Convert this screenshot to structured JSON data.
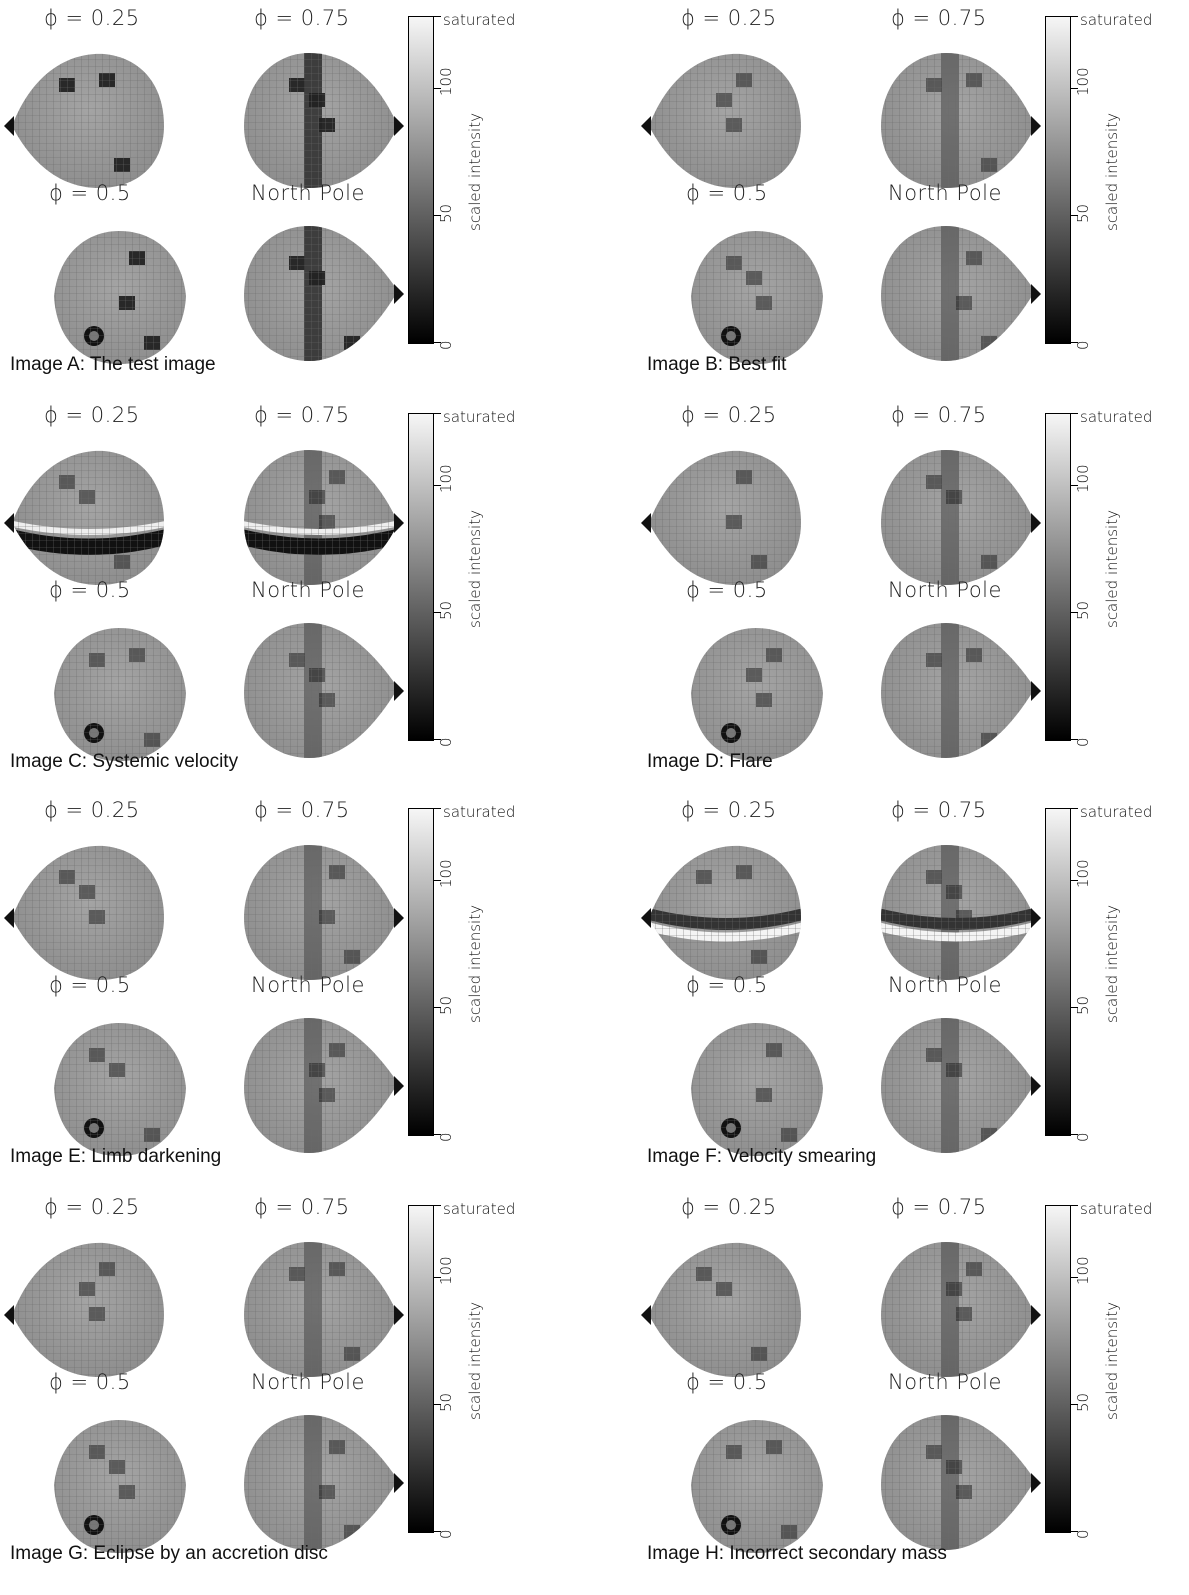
{
  "labels": {
    "phi_025": "ϕ = 0.25",
    "phi_075": "ϕ = 0.75",
    "phi_05": "ϕ = 0.5",
    "north_pole": "North Pole"
  },
  "colorbar": {
    "saturated": "saturated",
    "ticks": [
      "0",
      "50",
      "100"
    ],
    "axis_label": "scaled intensity"
  },
  "panels": [
    {
      "id": "A",
      "caption": "Image A: The test image"
    },
    {
      "id": "B",
      "caption": "Image B: Best fit"
    },
    {
      "id": "C",
      "caption": "Image C: Systemic velocity"
    },
    {
      "id": "D",
      "caption": "Image D: Flare"
    },
    {
      "id": "E",
      "caption": "Image E: Limb darkening"
    },
    {
      "id": "F",
      "caption": "Image F: Velocity smearing"
    },
    {
      "id": "G",
      "caption": "Image G: Eclipse by an accretion disc"
    },
    {
      "id": "H",
      "caption": "Image H: Incorrect secondary mass"
    }
  ]
}
